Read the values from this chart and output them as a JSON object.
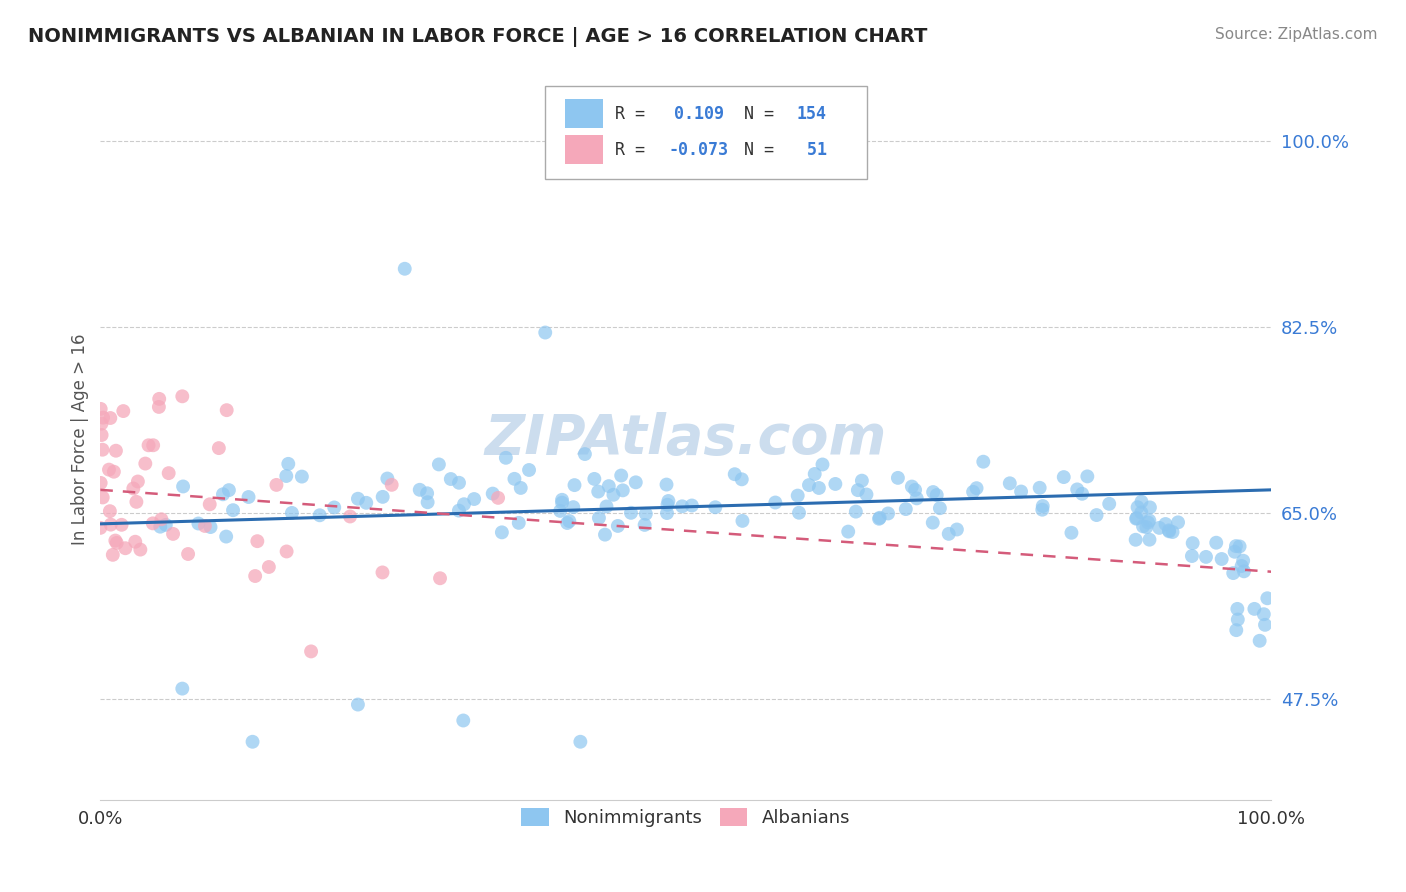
{
  "title": "NONIMMIGRANTS VS ALBANIAN IN LABOR FORCE | AGE > 16 CORRELATION CHART",
  "source": "Source: ZipAtlas.com",
  "ylabel": "In Labor Force | Age > 16",
  "y_tick_labels": [
    "47.5%",
    "65.0%",
    "82.5%",
    "100.0%"
  ],
  "y_tick_values": [
    0.475,
    0.65,
    0.825,
    1.0
  ],
  "xlim": [
    0.0,
    1.0
  ],
  "ylim": [
    0.38,
    1.06
  ],
  "blue_color": "#8EC6F0",
  "pink_color": "#F5A8BA",
  "blue_line_color": "#2B6CB0",
  "pink_line_color": "#D45B7A",
  "tick_color": "#3A7BD5",
  "title_color": "#222222",
  "axis_label_color": "#555555",
  "source_color": "#888888",
  "grid_color": "#CCCCCC",
  "watermark_color": "#CCDDEE",
  "legend_label1": "Nonimmigrants",
  "legend_label2": "Albanians",
  "blue_trend_y_start": 0.64,
  "blue_trend_y_end": 0.672,
  "pink_trend_x_start": 0.0,
  "pink_trend_x_end": 1.0,
  "pink_trend_y_start": 0.672,
  "pink_trend_y_end": 0.595
}
